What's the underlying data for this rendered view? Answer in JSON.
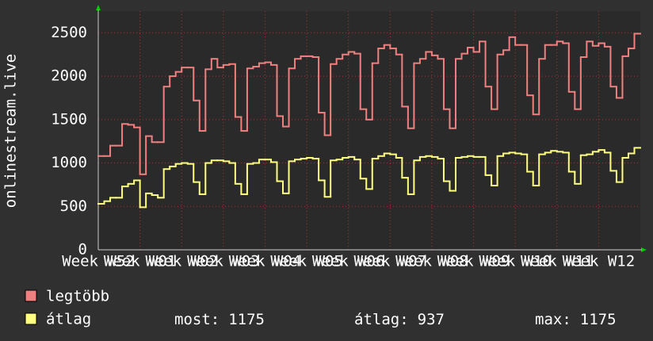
{
  "chart_data": {
    "type": "step-line",
    "y_label": "onlinestream.live",
    "xlim": [
      0,
      91
    ],
    "xticks": [
      {
        "value": 0,
        "label": "Week W52"
      },
      {
        "value": 7,
        "label": "Week W01"
      },
      {
        "value": 14,
        "label": "Week W02"
      },
      {
        "value": 21,
        "label": "Week W03"
      },
      {
        "value": 28,
        "label": "Week W04"
      },
      {
        "value": 35,
        "label": "Week W05"
      },
      {
        "value": 42,
        "label": "Week W06"
      },
      {
        "value": 49,
        "label": "Week W07"
      },
      {
        "value": 56,
        "label": "Week W08"
      },
      {
        "value": 63,
        "label": "Week W09"
      },
      {
        "value": 70,
        "label": "Week W10"
      },
      {
        "value": 77,
        "label": "Week W11"
      },
      {
        "value": 84,
        "label": "Week W12"
      }
    ],
    "ylim": [
      0,
      2750
    ],
    "yticks": [
      0,
      500,
      1000,
      1500,
      2000,
      2500
    ],
    "grid": true,
    "series": [
      {
        "name": "legtöbb",
        "color": "#f08080",
        "values": [
          1080,
          1080,
          1200,
          1200,
          1450,
          1440,
          1410,
          870,
          1310,
          1240,
          1240,
          1880,
          2000,
          2050,
          2100,
          2100,
          1720,
          1370,
          2080,
          2200,
          2100,
          2130,
          2140,
          1530,
          1370,
          2090,
          2110,
          2150,
          2160,
          2130,
          1540,
          1420,
          2090,
          2200,
          2230,
          2230,
          2220,
          1580,
          1320,
          2140,
          2200,
          2250,
          2280,
          2260,
          1620,
          1500,
          2150,
          2320,
          2360,
          2320,
          2250,
          1650,
          1400,
          2150,
          2200,
          2280,
          2240,
          2200,
          1620,
          1400,
          2200,
          2260,
          2330,
          2280,
          2400,
          1880,
          1620,
          2250,
          2300,
          2450,
          2360,
          2360,
          1780,
          1560,
          2200,
          2360,
          2360,
          2400,
          2380,
          1820,
          1620,
          2220,
          2400,
          2350,
          2380,
          2340,
          1880,
          1750,
          2230,
          2320,
          2490
        ]
      },
      {
        "name": "átlag",
        "color": "#ffff80",
        "values": [
          530,
          560,
          600,
          600,
          730,
          760,
          800,
          490,
          650,
          630,
          600,
          930,
          960,
          990,
          1000,
          990,
          780,
          640,
          1000,
          1030,
          1030,
          1020,
          1000,
          760,
          640,
          990,
          1000,
          1040,
          1040,
          1010,
          790,
          650,
          1020,
          1040,
          1050,
          1060,
          1050,
          800,
          610,
          1030,
          1040,
          1060,
          1070,
          1040,
          820,
          700,
          1050,
          1080,
          1110,
          1100,
          1060,
          830,
          640,
          1030,
          1070,
          1080,
          1070,
          1050,
          790,
          680,
          1060,
          1070,
          1080,
          1070,
          1070,
          860,
          740,
          1080,
          1110,
          1120,
          1110,
          1100,
          900,
          740,
          1100,
          1120,
          1140,
          1130,
          1120,
          900,
          760,
          1090,
          1100,
          1130,
          1150,
          1120,
          910,
          780,
          1060,
          1110,
          1175
        ]
      }
    ],
    "stats": [
      {
        "label": "most:",
        "value": 1175
      },
      {
        "label": "átlag:",
        "value": 937
      },
      {
        "label": "max:",
        "value": 1175
      }
    ]
  }
}
